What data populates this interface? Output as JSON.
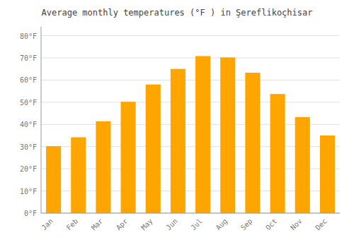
{
  "chart_data": {
    "type": "bar",
    "title": "Average monthly temperatures (°F ) in Şereflikоçhisar",
    "categories": [
      "Jan",
      "Feb",
      "Mar",
      "Apr",
      "May",
      "Jun",
      "Jul",
      "Aug",
      "Sep",
      "Oct",
      "Nov",
      "Dec"
    ],
    "values": [
      30.2,
      34.2,
      41.4,
      50.2,
      58.0,
      65.0,
      70.8,
      70.2,
      63.3,
      53.7,
      43.3,
      35.0
    ],
    "color": "#FFA500",
    "ylim": [
      0,
      84
    ],
    "yticks": [
      {
        "value": 0,
        "label": "0°F"
      },
      {
        "value": 10,
        "label": "10°F"
      },
      {
        "value": 20,
        "label": "20°F"
      },
      {
        "value": 30,
        "label": "30°F"
      },
      {
        "value": 40,
        "label": "40°F"
      },
      {
        "value": 50,
        "label": "50°F"
      },
      {
        "value": 60,
        "label": "60°F"
      },
      {
        "value": 70,
        "label": "70°F"
      },
      {
        "value": 80,
        "label": "80°F"
      }
    ],
    "grid": true
  }
}
